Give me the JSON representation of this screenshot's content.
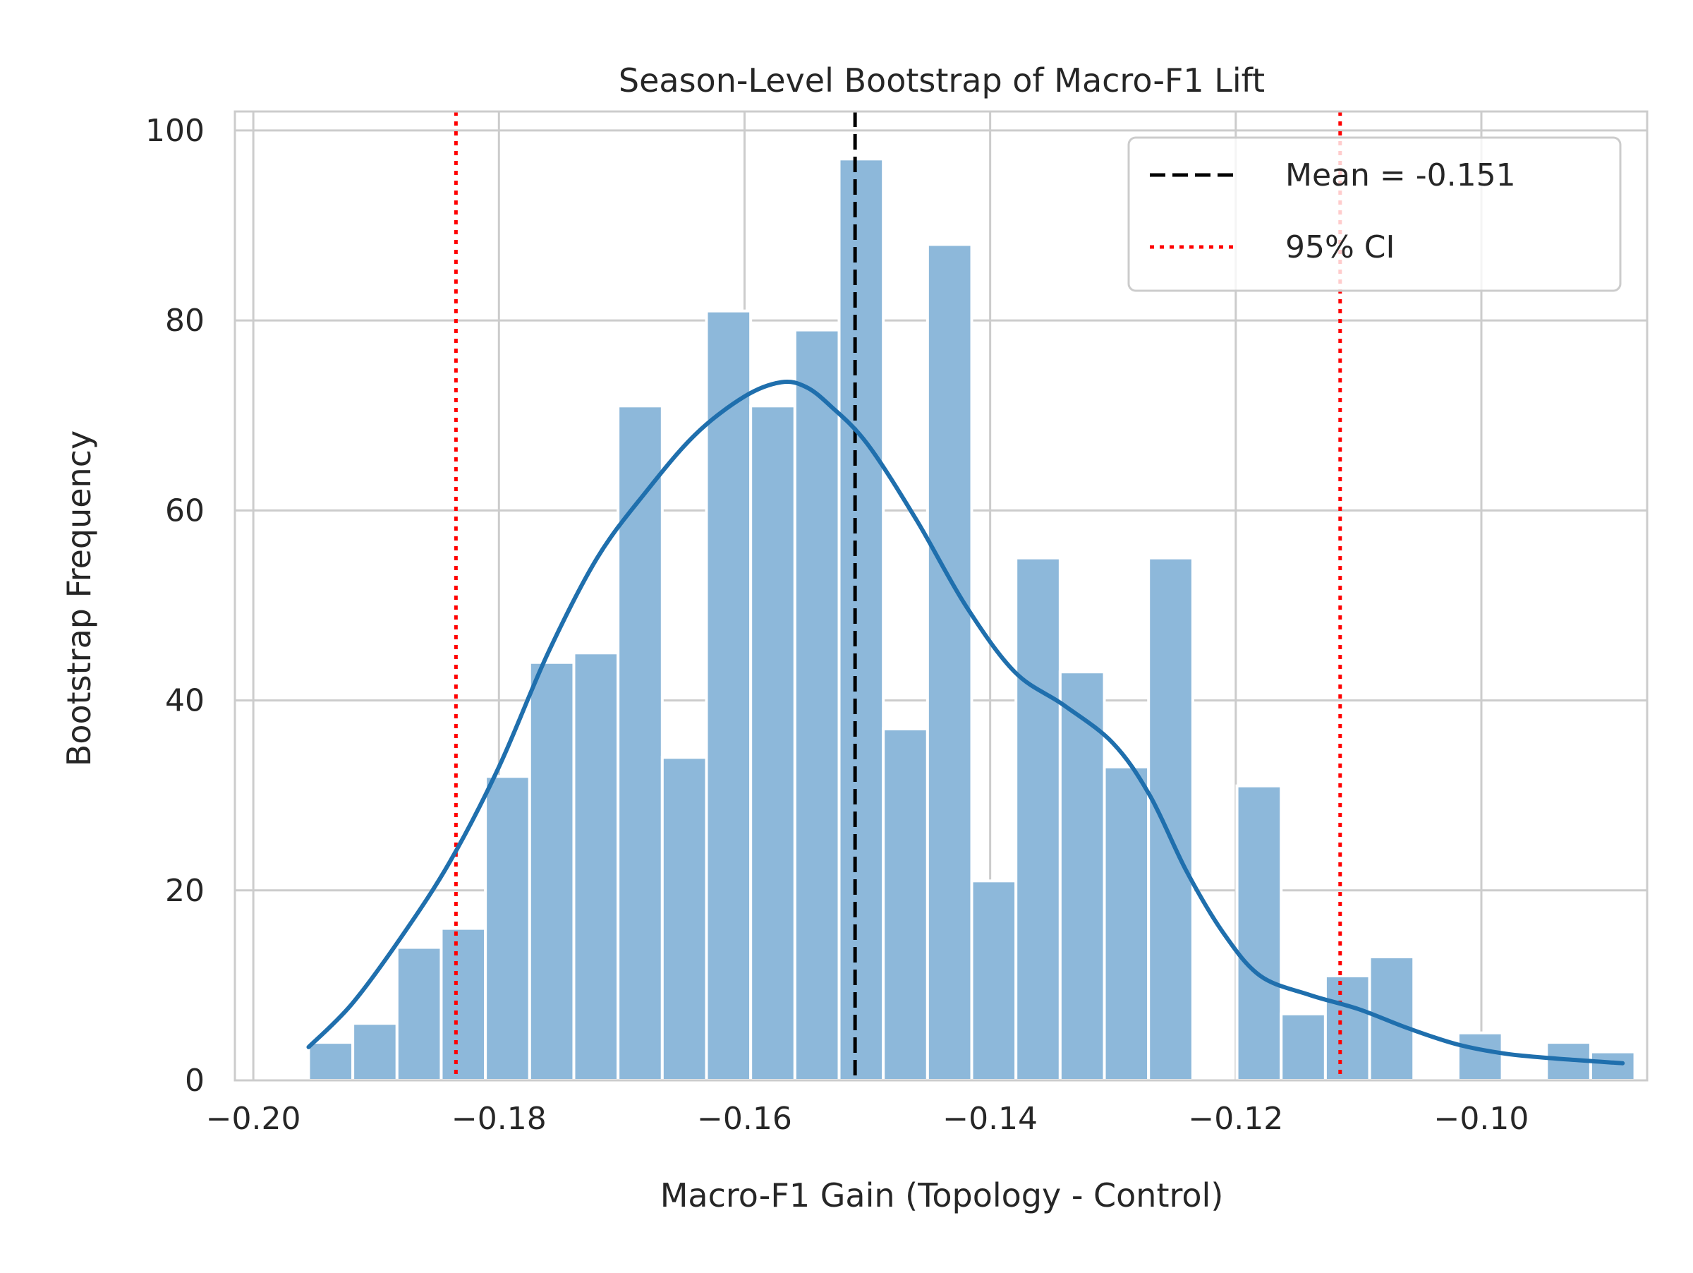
{
  "chart_data": {
    "type": "bar",
    "subtype": "histogram-with-kde",
    "title": "Season-Level Bootstrap of Macro-F1 Lift",
    "xlabel": "Macro-F1 Gain (Topology - Control)",
    "ylabel": "Bootstrap Frequency",
    "xlim": [
      -0.2015,
      -0.0865
    ],
    "ylim": [
      0,
      102
    ],
    "x_ticks": [
      -0.2,
      -0.18,
      -0.16,
      -0.14,
      -0.12,
      -0.1
    ],
    "x_tick_labels": [
      "−0.20",
      "−0.18",
      "−0.16",
      "−0.14",
      "−0.12",
      "−0.10"
    ],
    "y_ticks": [
      0,
      20,
      40,
      60,
      80,
      100
    ],
    "y_tick_labels": [
      "0",
      "20",
      "40",
      "60",
      "80",
      "100"
    ],
    "grid": true,
    "bin_edges_start": -0.1955,
    "bin_width": 0.0036,
    "counts": [
      4,
      6,
      14,
      16,
      32,
      44,
      45,
      71,
      34,
      81,
      71,
      79,
      97,
      37,
      88,
      21,
      55,
      43,
      33,
      55,
      0,
      31,
      7,
      11,
      13,
      0,
      5,
      0,
      4,
      3
    ],
    "kde": {
      "x": [
        -0.1955,
        -0.192,
        -0.188,
        -0.184,
        -0.18,
        -0.176,
        -0.172,
        -0.168,
        -0.164,
        -0.16,
        -0.157,
        -0.155,
        -0.153,
        -0.15,
        -0.146,
        -0.142,
        -0.138,
        -0.134,
        -0.13,
        -0.127,
        -0.124,
        -0.121,
        -0.118,
        -0.114,
        -0.11,
        -0.106,
        -0.102,
        -0.098,
        -0.094,
        -0.0885
      ],
      "y": [
        3.5,
        8,
        15,
        23,
        33,
        45,
        55,
        62,
        68,
        72,
        73.5,
        73,
        71,
        67,
        59,
        50,
        43,
        39.5,
        35.5,
        30,
        22,
        15.5,
        11,
        9,
        7.5,
        5.5,
        3.8,
        2.8,
        2.3,
        1.8
      ]
    },
    "mean_line": {
      "value": -0.151,
      "label": "Mean = -0.151",
      "color": "#000000",
      "style": "dashed"
    },
    "ci_lines": {
      "values": [
        -0.1835,
        -0.1115
      ],
      "label": "95% CI",
      "color": "#ff0000",
      "style": "dotted"
    },
    "colors": {
      "bars": "#8db8da",
      "kde": "#1f6fad",
      "grid": "#cccccc"
    },
    "legend_position": "top-right"
  }
}
